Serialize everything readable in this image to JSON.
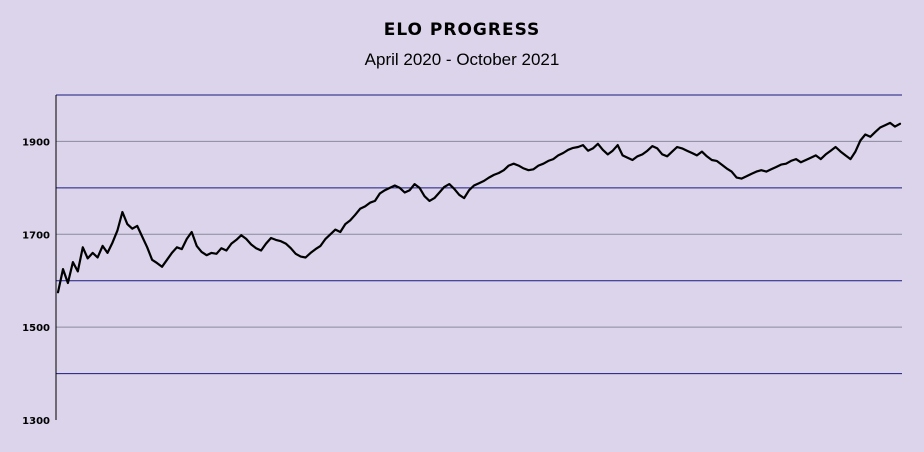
{
  "chart_data": {
    "type": "line",
    "title": "ELO PROGRESS",
    "subtitle": "April 2020 - October 2021",
    "xlabel": "",
    "ylabel": "",
    "ylim": [
      1300,
      2000
    ],
    "yticks": [
      1300,
      1500,
      1700,
      1900
    ],
    "grid": true,
    "colors": {
      "background": "#dcd4ea",
      "line": "#000000",
      "major_grid": "#1a1a80",
      "minor_grid": "#8a8a9e"
    },
    "series": [
      {
        "values": [
          1575,
          1625,
          1595,
          1640,
          1620,
          1672,
          1648,
          1660,
          1650,
          1675,
          1660,
          1682,
          1708,
          1748,
          1722,
          1712,
          1718,
          1695,
          1672,
          1645,
          1638,
          1630,
          1645,
          1660,
          1672,
          1668,
          1690,
          1705,
          1675,
          1662,
          1655,
          1660,
          1658,
          1670,
          1665,
          1680,
          1688,
          1698,
          1690,
          1678,
          1670,
          1665,
          1680,
          1692,
          1688,
          1685,
          1680,
          1670,
          1658,
          1652,
          1650,
          1660,
          1668,
          1675,
          1690,
          1700,
          1710,
          1705,
          1722,
          1730,
          1742,
          1755,
          1760,
          1768,
          1772,
          1788,
          1795,
          1800,
          1805,
          1800,
          1790,
          1795,
          1808,
          1800,
          1782,
          1772,
          1778,
          1790,
          1802,
          1808,
          1798,
          1785,
          1778,
          1795,
          1805,
          1810,
          1815,
          1822,
          1828,
          1832,
          1838,
          1848,
          1852,
          1848,
          1842,
          1838,
          1840,
          1848,
          1852,
          1858,
          1862,
          1870,
          1875,
          1882,
          1886,
          1888,
          1892,
          1880,
          1885,
          1895,
          1882,
          1872,
          1880,
          1892,
          1870,
          1865,
          1860,
          1868,
          1872,
          1880,
          1890,
          1885,
          1872,
          1868,
          1878,
          1888,
          1885,
          1880,
          1875,
          1870,
          1878,
          1868,
          1860,
          1858,
          1850,
          1842,
          1835,
          1822,
          1820,
          1825,
          1830,
          1835,
          1838,
          1835,
          1840,
          1845,
          1850,
          1852,
          1858,
          1862,
          1855,
          1860,
          1865,
          1870,
          1862,
          1872,
          1880,
          1888,
          1878,
          1870,
          1862,
          1878,
          1902,
          1915,
          1910,
          1920,
          1930,
          1935,
          1940,
          1932,
          1938
        ]
      }
    ]
  }
}
